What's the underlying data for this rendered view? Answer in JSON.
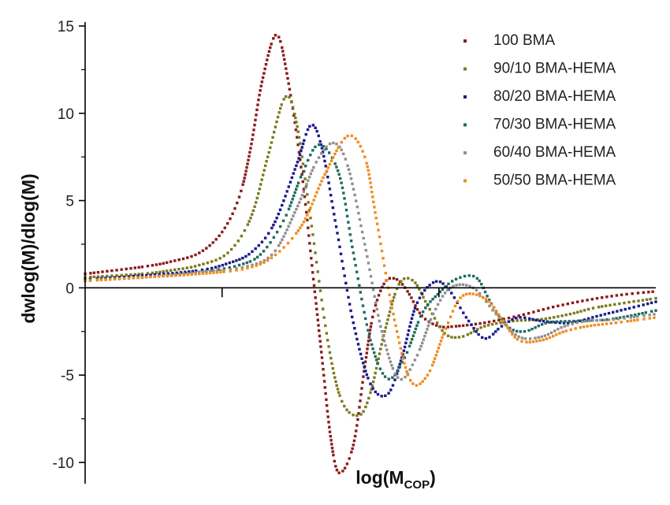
{
  "chart_data": {
    "type": "scatter",
    "title": "",
    "xlabel": "log(M",
    "xlabel_sub": "COP",
    "xlabel_close": ")",
    "ylabel": "dwlog(M)/dlog(M)",
    "ylim": [
      -10.5,
      15
    ],
    "yticks": [
      -10,
      -5,
      0,
      5,
      10,
      15
    ],
    "ytick_labels": [
      "-10",
      "-5",
      "0",
      "5",
      "10",
      "15"
    ],
    "xlim": [
      0,
      10
    ],
    "x_ticks_unlabeled": [
      2.4,
      6.2
    ],
    "grid": false,
    "legend_position": "top-right",
    "series": [
      {
        "name": "100 BMA",
        "color": "#8b1a1a",
        "x": [
          0,
          1,
          1.5,
          2,
          2.4,
          2.7,
          2.9,
          3.1,
          3.35,
          3.55,
          3.8,
          4.0,
          4.15,
          4.3,
          4.45,
          4.7,
          4.9,
          5.05,
          5.25,
          5.45,
          5.65,
          5.9,
          6.2,
          6.5,
          7.0,
          7.6,
          8.2,
          8.8,
          9.4,
          10
        ],
        "y": [
          0.8,
          1.2,
          1.5,
          2.0,
          3.2,
          5.2,
          8.0,
          11.8,
          14.5,
          12.0,
          6.5,
          0.5,
          -4.0,
          -8.5,
          -10.6,
          -9.0,
          -4.5,
          -1.5,
          0.3,
          0.5,
          -0.2,
          -1.6,
          -2.2,
          -2.2,
          -2.0,
          -1.6,
          -1.1,
          -0.7,
          -0.4,
          -0.2
        ]
      },
      {
        "name": "90/10 BMA-HEMA",
        "color": "#7b7a1e",
        "x": [
          0,
          1,
          1.5,
          2,
          2.5,
          2.9,
          3.2,
          3.5,
          3.7,
          3.95,
          4.25,
          4.5,
          4.8,
          5.0,
          5.25,
          5.5,
          5.75,
          6.0,
          6.3,
          6.6,
          7.0,
          7.5,
          8.0,
          8.5,
          9.0,
          10
        ],
        "y": [
          0.6,
          0.8,
          1.0,
          1.3,
          2.0,
          4.0,
          7.5,
          10.9,
          9.5,
          4.0,
          -3.0,
          -6.5,
          -7.3,
          -6.0,
          -2.5,
          0.2,
          0.4,
          -1.0,
          -2.6,
          -2.8,
          -2.2,
          -1.9,
          -1.8,
          -1.5,
          -1.1,
          -0.6
        ]
      },
      {
        "name": "80/20 BMA-HEMA",
        "color": "#1a1a8c",
        "x": [
          0,
          1,
          2,
          2.5,
          2.9,
          3.3,
          3.7,
          3.95,
          4.15,
          4.4,
          4.7,
          5.0,
          5.3,
          5.55,
          5.8,
          6.1,
          6.35,
          6.7,
          7.0,
          7.3,
          7.6,
          8.0,
          8.5,
          9.0,
          9.5,
          10
        ],
        "y": [
          0.5,
          0.7,
          1.0,
          1.4,
          2.0,
          3.6,
          7.0,
          9.3,
          8.0,
          3.5,
          -2.0,
          -5.5,
          -6.1,
          -4.0,
          -1.0,
          0.3,
          0.0,
          -1.8,
          -2.9,
          -2.2,
          -1.7,
          -1.9,
          -2.0,
          -1.6,
          -1.2,
          -0.8
        ]
      },
      {
        "name": "70/30 BMA-HEMA",
        "color": "#1f6b5f",
        "x": [
          0,
          1,
          2,
          2.7,
          3.1,
          3.5,
          3.8,
          4.1,
          4.45,
          4.7,
          5.0,
          5.3,
          5.6,
          5.9,
          6.2,
          6.5,
          6.85,
          7.1,
          7.4,
          7.7,
          8.1,
          8.6,
          9.2,
          10
        ],
        "y": [
          0.5,
          0.6,
          0.9,
          1.3,
          2.0,
          4.0,
          6.5,
          8.2,
          6.5,
          2.0,
          -3.0,
          -5.2,
          -4.0,
          -1.5,
          -0.3,
          0.5,
          0.6,
          -0.8,
          -2.2,
          -2.5,
          -2.0,
          -1.9,
          -1.8,
          -1.3
        ]
      },
      {
        "name": "60/40 BMA-HEMA",
        "color": "#8f8f8f",
        "x": [
          0,
          1,
          2,
          2.8,
          3.3,
          3.7,
          4.05,
          4.35,
          4.6,
          4.9,
          5.2,
          5.5,
          5.8,
          6.1,
          6.4,
          6.8,
          7.2,
          7.6,
          8.0,
          8.4,
          8.8,
          9.3,
          10
        ],
        "y": [
          0.4,
          0.6,
          0.9,
          1.2,
          2.0,
          4.5,
          7.2,
          8.3,
          7.0,
          2.5,
          -2.5,
          -5.2,
          -4.0,
          -1.5,
          0.0,
          0.0,
          -1.5,
          -2.8,
          -2.8,
          -2.2,
          -1.9,
          -1.8,
          -1.5
        ]
      },
      {
        "name": "50/50 BMA-HEMA",
        "color": "#f08c1e",
        "x": [
          0,
          1,
          2,
          2.8,
          3.3,
          3.8,
          4.2,
          4.6,
          4.9,
          5.1,
          5.4,
          5.7,
          6.0,
          6.3,
          6.6,
          7.0,
          7.3,
          7.6,
          8.0,
          8.4,
          8.8,
          9.3,
          10
        ],
        "y": [
          0.4,
          0.6,
          0.8,
          1.1,
          1.8,
          3.6,
          6.5,
          8.7,
          7.5,
          4.0,
          -1.5,
          -5.3,
          -5.0,
          -2.5,
          -0.5,
          -0.6,
          -1.8,
          -3.0,
          -3.0,
          -2.5,
          -2.2,
          -2.0,
          -1.7
        ]
      }
    ]
  }
}
